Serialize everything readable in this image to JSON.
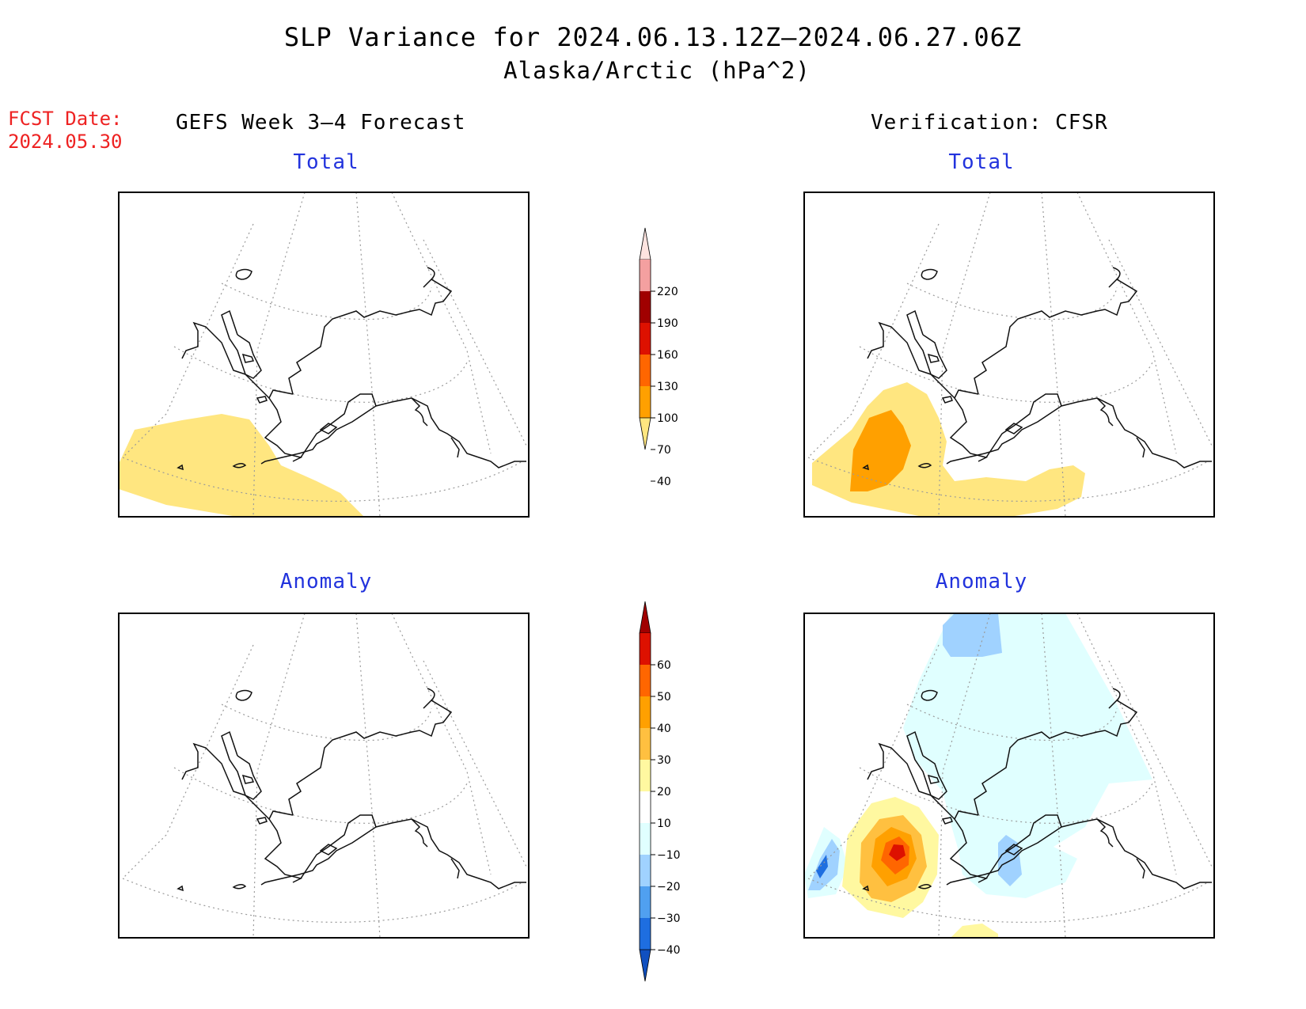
{
  "title": "SLP Variance for 2024.06.13.12Z–2024.06.27.06Z",
  "subtitle": "Alaska/Arctic (hPa^2)",
  "forecast_date_label": "FCST Date:",
  "forecast_date": "2024.05.30",
  "left_column_title": "GEFS Week 3–4 Forecast",
  "right_column_title": "Verification: CFSR",
  "panels": {
    "fcst_total": {
      "title": "Total"
    },
    "verif_total": {
      "title": "Total"
    },
    "fcst_anomaly": {
      "title": "Anomaly"
    },
    "verif_anomaly": {
      "title": "Anomaly"
    }
  },
  "total_colorbar": {
    "labels": [
      "220",
      "190",
      "160",
      "130",
      "100",
      "70",
      "40"
    ],
    "colors": [
      "#fde4e0",
      "#f4a0a0",
      "#a00000",
      "#dd1100",
      "#ff6600",
      "#ffa000",
      "#ffe680"
    ]
  },
  "anomaly_colorbar": {
    "labels": [
      "60",
      "50",
      "40",
      "30",
      "20",
      "10",
      "−10",
      "−20",
      "−30",
      "−40"
    ],
    "colors": [
      "#a00000",
      "#dd1100",
      "#ff6600",
      "#ffa000",
      "#ffc040",
      "#fff8a0",
      "#ffffff",
      "#e0ffff",
      "#a0d2ff",
      "#50a0f0",
      "#1e6ee0",
      "#1050c0"
    ]
  }
}
